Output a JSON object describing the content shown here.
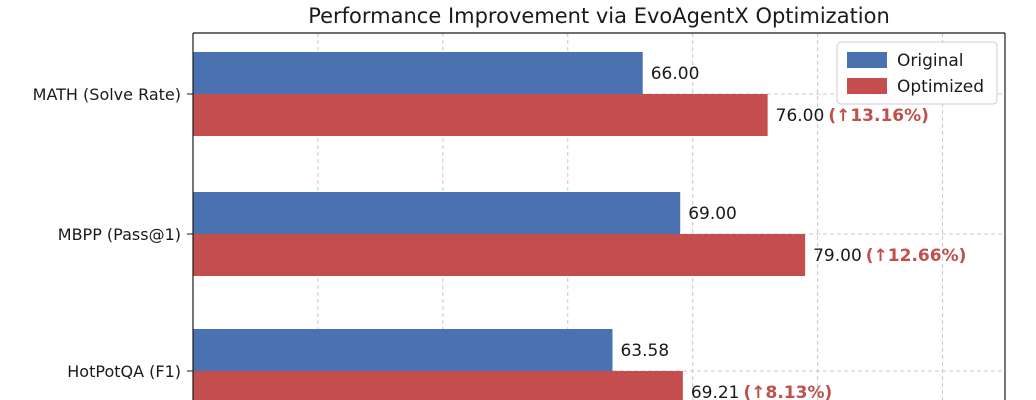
{
  "chart_data": {
    "type": "bar",
    "orientation": "horizontal",
    "title": "Performance Improvement via EvoAgentX Optimization",
    "categories": [
      "MATH (Solve Rate)",
      "MBPP (Pass@1)",
      "HotPotQA (F1)"
    ],
    "series": [
      {
        "name": "Original",
        "color": "#4a72b0",
        "values": [
          66.0,
          69.0,
          63.58
        ],
        "value_labels": [
          "66.00",
          "69.00",
          "63.58"
        ]
      },
      {
        "name": "Optimized",
        "color": "#c44e4e",
        "values": [
          76.0,
          79.0,
          69.21
        ],
        "value_labels": [
          "76.00",
          "79.00",
          "69.21"
        ],
        "improvement_labels": [
          "(↑13.16%)",
          "(↑12.66%)",
          "(↑8.13%)"
        ]
      }
    ],
    "improvement_color": "#c0504d",
    "xlim": [
      30,
      95
    ],
    "x_gridlines": [
      40,
      50,
      60,
      70,
      80,
      90
    ],
    "grid": true,
    "legend_position": "top-right"
  }
}
